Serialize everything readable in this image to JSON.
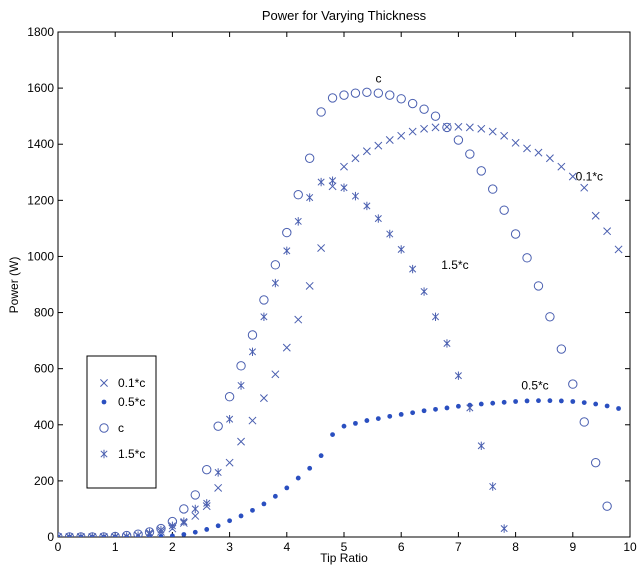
{
  "chart_data": {
    "type": "scatter",
    "title": "Power for Varying Thickness",
    "xlabel": "Tip Ratio",
    "ylabel": "Power (W)",
    "xlim": [
      0,
      10
    ],
    "ylim": [
      0,
      1800
    ],
    "xticks": [
      "0",
      "1",
      "2",
      "3",
      "4",
      "5",
      "6",
      "7",
      "8",
      "9",
      "10"
    ],
    "yticks": [
      "0",
      "200",
      "400",
      "600",
      "800",
      "1000",
      "1200",
      "1400",
      "1600",
      "1800"
    ],
    "grid": false,
    "legend_position": "left",
    "series": [
      {
        "name": "0.1*c",
        "marker": "x",
        "color": "#4a5fb0",
        "x": [
          0,
          0.2,
          0.4,
          0.6,
          0.8,
          1.0,
          1.2,
          1.4,
          1.6,
          1.8,
          2.0,
          2.2,
          2.4,
          2.6,
          2.8,
          3.0,
          3.2,
          3.4,
          3.6,
          3.8,
          4.0,
          4.2,
          4.4,
          4.6,
          4.8,
          5.0,
          5.2,
          5.4,
          5.6,
          5.8,
          6.0,
          6.2,
          6.4,
          6.6,
          6.8,
          7.0,
          7.2,
          7.4,
          7.6,
          7.8,
          8.0,
          8.2,
          8.4,
          8.6,
          8.8,
          9.0,
          9.2,
          9.4,
          9.6,
          9.8
        ],
        "y": [
          0,
          0,
          0,
          0,
          0,
          0,
          2,
          5,
          10,
          18,
          30,
          50,
          75,
          110,
          175,
          265,
          340,
          415,
          495,
          580,
          675,
          775,
          895,
          1030,
          1250,
          1320,
          1350,
          1375,
          1395,
          1415,
          1430,
          1445,
          1455,
          1460,
          1462,
          1462,
          1460,
          1455,
          1445,
          1430,
          1405,
          1385,
          1370,
          1350,
          1320,
          1285,
          1245,
          1145,
          1090,
          1025
        ]
      },
      {
        "name": "0.5*c",
        "marker": "dot",
        "color": "#2a4fc0",
        "x": [
          0,
          0.2,
          0.4,
          0.6,
          0.8,
          1.0,
          1.2,
          1.4,
          1.6,
          1.8,
          2.0,
          2.2,
          2.4,
          2.6,
          2.8,
          3.0,
          3.2,
          3.4,
          3.6,
          3.8,
          4.0,
          4.2,
          4.4,
          4.6,
          4.8,
          5.0,
          5.2,
          5.4,
          5.6,
          5.8,
          6.0,
          6.2,
          6.4,
          6.6,
          6.8,
          7.0,
          7.2,
          7.4,
          7.6,
          7.8,
          8.0,
          8.2,
          8.4,
          8.6,
          8.8,
          9.0,
          9.2,
          9.4,
          9.6,
          9.8
        ],
        "y": [
          0,
          0,
          0,
          0,
          0,
          0,
          0,
          0,
          1,
          2,
          4,
          9,
          17,
          27,
          40,
          58,
          75,
          95,
          118,
          145,
          175,
          210,
          245,
          290,
          365,
          395,
          405,
          415,
          422,
          430,
          437,
          443,
          450,
          455,
          460,
          466,
          470,
          474,
          477,
          480,
          483,
          485,
          486,
          486,
          485,
          483,
          479,
          474,
          467,
          458
        ]
      },
      {
        "name": "c",
        "marker": "circle",
        "color": "#4a5fb0",
        "x": [
          0,
          0.2,
          0.4,
          0.6,
          0.8,
          1.0,
          1.2,
          1.4,
          1.6,
          1.8,
          2.0,
          2.2,
          2.4,
          2.6,
          2.8,
          3.0,
          3.2,
          3.4,
          3.6,
          3.8,
          4.0,
          4.2,
          4.4,
          4.6,
          4.8,
          5.0,
          5.2,
          5.4,
          5.6,
          5.8,
          6.0,
          6.2,
          6.4,
          6.6,
          6.8,
          7.0,
          7.2,
          7.4,
          7.6,
          7.8,
          8.0,
          8.2,
          8.4,
          8.6,
          8.8,
          9.0,
          9.2,
          9.4,
          9.6
        ],
        "y": [
          0,
          0,
          0,
          0,
          0,
          2,
          5,
          10,
          18,
          30,
          55,
          100,
          150,
          240,
          395,
          500,
          610,
          720,
          845,
          970,
          1085,
          1220,
          1350,
          1515,
          1565,
          1575,
          1582,
          1585,
          1582,
          1575,
          1562,
          1545,
          1525,
          1500,
          1460,
          1415,
          1365,
          1305,
          1240,
          1165,
          1080,
          995,
          895,
          785,
          670,
          545,
          410,
          265,
          110
        ]
      },
      {
        "name": "1.5*c",
        "marker": "star",
        "color": "#4a5fb0",
        "x": [
          0,
          0.2,
          0.4,
          0.6,
          0.8,
          1.0,
          1.2,
          1.4,
          1.6,
          1.8,
          2.0,
          2.2,
          2.4,
          2.6,
          2.8,
          3.0,
          3.2,
          3.4,
          3.6,
          3.8,
          4.0,
          4.2,
          4.4,
          4.6,
          4.8,
          5.0,
          5.2,
          5.4,
          5.6,
          5.8,
          6.0,
          6.2,
          6.4,
          6.6,
          6.8,
          7.0,
          7.2,
          7.4,
          7.6,
          7.8
        ],
        "y": [
          0,
          0,
          0,
          0,
          0,
          0,
          2,
          5,
          15,
          25,
          40,
          55,
          100,
          120,
          230,
          420,
          540,
          660,
          785,
          905,
          1020,
          1125,
          1210,
          1265,
          1270,
          1245,
          1215,
          1180,
          1135,
          1080,
          1025,
          955,
          875,
          785,
          690,
          575,
          460,
          325,
          180,
          30
        ]
      }
    ],
    "annotations": [
      {
        "text": "c",
        "x": 5.55,
        "y": 1620
      },
      {
        "text": "0.1*c",
        "x": 9.05,
        "y": 1270
      },
      {
        "text": "1.5*c",
        "x": 6.7,
        "y": 955
      },
      {
        "text": "0.5*c",
        "x": 8.1,
        "y": 525
      }
    ]
  }
}
